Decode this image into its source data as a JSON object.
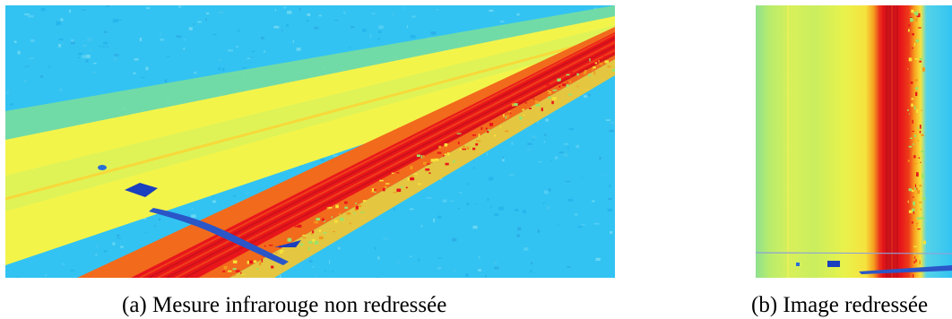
{
  "figure": {
    "panels": [
      {
        "id": "a",
        "caption": "(a) Mesure infrarouge non redressée"
      },
      {
        "id": "b",
        "caption": "(b) Image redressée"
      }
    ]
  },
  "colors": {
    "cold_background": "#2fc0f0",
    "road_surface": "#f7f24a",
    "hot_track": "#ee1d18",
    "warm_edge": "#f7941d",
    "mark_blue": "#1a3fbf"
  }
}
